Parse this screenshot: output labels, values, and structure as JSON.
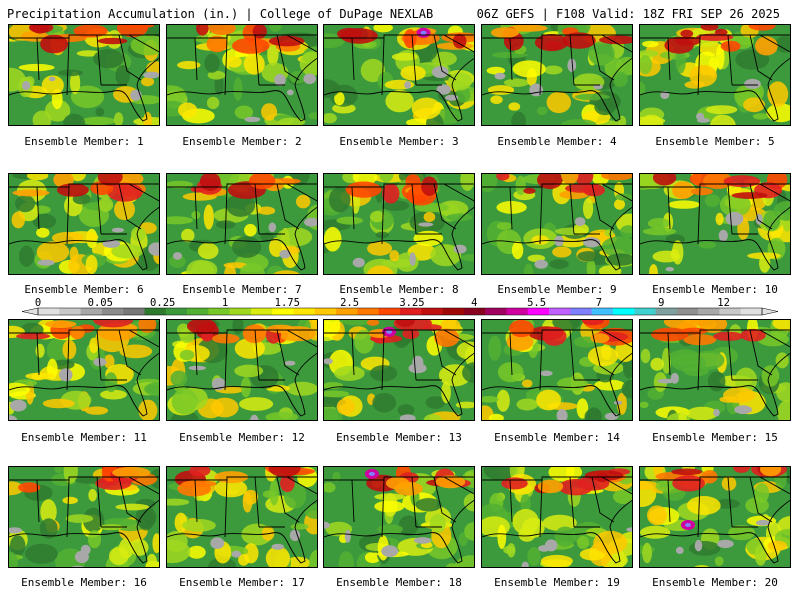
{
  "header": {
    "left": "Precipitation Accumulation (in.) | College of DuPage NEXLAB",
    "right": "06Z GEFS | F108 Valid: 18Z FRI SEP 26 2025"
  },
  "colorbar": {
    "labels": [
      "0",
      "0.05",
      "0.25",
      "1",
      "1.75",
      "2.5",
      "3.25",
      "4",
      "5.5",
      "7",
      "9",
      "12"
    ],
    "colors": [
      "#e0e0e0",
      "#c8c8c8",
      "#a8a8a8",
      "#8c8c8c",
      "#787878",
      "#2f7a2f",
      "#3c9a3c",
      "#52b032",
      "#78c828",
      "#a0d820",
      "#d8ec10",
      "#ffff00",
      "#ffe600",
      "#ffc800",
      "#ffa000",
      "#ff7800",
      "#ff4800",
      "#e02020",
      "#c01010",
      "#a00808",
      "#880020",
      "#a00060",
      "#d000a0",
      "#ff00ff",
      "#c060ff",
      "#8080ff",
      "#40c0ff",
      "#00ffff",
      "#40d0d0",
      "#80a0a0",
      "#909090",
      "#a8a8a8",
      "#c8c8c8",
      "#e0e0e0"
    ]
  },
  "members": [
    {
      "label": "Ensemble Member: 1"
    },
    {
      "label": "Ensemble Member: 2"
    },
    {
      "label": "Ensemble Member: 3"
    },
    {
      "label": "Ensemble Member: 4"
    },
    {
      "label": "Ensemble Member: 5"
    },
    {
      "label": "Ensemble Member: 6"
    },
    {
      "label": "Ensemble Member: 7"
    },
    {
      "label": "Ensemble Member: 8"
    },
    {
      "label": "Ensemble Member: 9"
    },
    {
      "label": "Ensemble Member: 10"
    },
    {
      "label": "Ensemble Member: 11"
    },
    {
      "label": "Ensemble Member: 12"
    },
    {
      "label": "Ensemble Member: 13"
    },
    {
      "label": "Ensemble Member: 14"
    },
    {
      "label": "Ensemble Member: 15"
    },
    {
      "label": "Ensemble Member: 16"
    },
    {
      "label": "Ensemble Member: 17"
    },
    {
      "label": "Ensemble Member: 18"
    },
    {
      "label": "Ensemble Member: 19"
    },
    {
      "label": "Ensemble Member: 20"
    }
  ]
}
